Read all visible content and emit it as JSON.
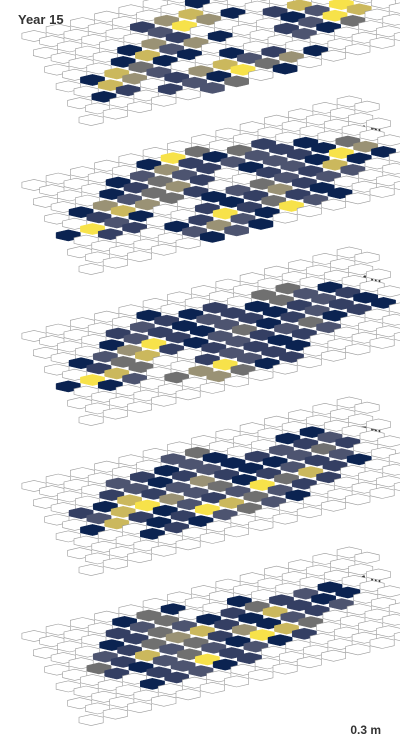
{
  "chart_data": {
    "type": "heatmap",
    "title": "Year 15",
    "depth_unit": "m",
    "colorscale": [
      "#ffffff",
      "#0b2351",
      "#343f63",
      "#4d5470",
      "#707070",
      "#9a9275",
      "#cbb85d",
      "#f7e24a"
    ],
    "layers": [
      {
        "label": "3.1 m",
        "rows": [
          [
            0,
            0,
            0,
            0,
            0,
            0,
            0,
            0,
            0,
            0,
            0,
            0,
            0,
            0
          ],
          [
            0,
            0,
            0,
            0,
            0,
            0,
            1,
            0,
            0,
            0,
            0,
            0,
            0,
            0
          ],
          [
            0,
            0,
            0,
            0,
            2,
            5,
            6,
            0,
            0,
            0,
            0,
            0,
            0,
            0
          ],
          [
            0,
            0,
            0,
            0,
            3,
            7,
            5,
            1,
            0,
            0,
            0,
            0,
            0,
            0
          ],
          [
            0,
            0,
            0,
            1,
            5,
            2,
            0,
            0,
            0,
            2,
            6,
            0,
            0,
            0
          ],
          [
            0,
            0,
            1,
            6,
            3,
            5,
            1,
            0,
            0,
            1,
            3,
            7,
            0,
            0
          ],
          [
            0,
            1,
            6,
            4,
            1,
            1,
            0,
            0,
            0,
            2,
            3,
            7,
            6,
            0
          ],
          [
            0,
            6,
            5,
            3,
            0,
            0,
            1,
            0,
            0,
            3,
            1,
            4,
            0,
            0
          ],
          [
            0,
            1,
            2,
            0,
            2,
            5,
            6,
            3,
            2,
            0,
            0,
            0,
            0,
            0
          ],
          [
            0,
            0,
            0,
            2,
            3,
            1,
            7,
            4,
            5,
            1,
            0,
            0,
            0,
            0
          ],
          [
            0,
            0,
            0,
            0,
            0,
            3,
            4,
            0,
            1,
            0,
            0,
            0,
            0,
            0
          ]
        ]
      },
      {
        "label": "2.4 m",
        "rows": [
          [
            0,
            0,
            0,
            0,
            0,
            0,
            0,
            0,
            0,
            0,
            0,
            0,
            0,
            0
          ],
          [
            0,
            0,
            0,
            0,
            1,
            7,
            4,
            0,
            0,
            0,
            0,
            0,
            0,
            0
          ],
          [
            0,
            0,
            0,
            1,
            3,
            5,
            2,
            1,
            4,
            2,
            0,
            0,
            0,
            0
          ],
          [
            0,
            0,
            1,
            2,
            4,
            3,
            2,
            3,
            3,
            2,
            1,
            0,
            0,
            0
          ],
          [
            0,
            1,
            5,
            3,
            4,
            5,
            2,
            0,
            1,
            3,
            2,
            1,
            4,
            0
          ],
          [
            0,
            2,
            6,
            5,
            4,
            2,
            0,
            0,
            2,
            3,
            1,
            7,
            5,
            0
          ],
          [
            1,
            7,
            3,
            1,
            0,
            0,
            1,
            3,
            4,
            3,
            2,
            6,
            1,
            1
          ],
          [
            0,
            2,
            2,
            0,
            0,
            2,
            1,
            2,
            5,
            2,
            3,
            3,
            0,
            0
          ],
          [
            0,
            0,
            0,
            0,
            1,
            2,
            7,
            2,
            4,
            2,
            1,
            0,
            0,
            0
          ],
          [
            0,
            0,
            0,
            0,
            3,
            5,
            3,
            1,
            7,
            3,
            1,
            0,
            0,
            0
          ],
          [
            0,
            0,
            0,
            0,
            0,
            1,
            3,
            1,
            0,
            0,
            0,
            0,
            0,
            0
          ]
        ]
      },
      {
        "label": "1.7 m",
        "rows": [
          [
            0,
            0,
            0,
            0,
            0,
            0,
            0,
            0,
            0,
            0,
            0,
            0,
            0,
            0
          ],
          [
            0,
            0,
            0,
            0,
            1,
            0,
            0,
            0,
            0,
            0,
            0,
            0,
            0,
            0
          ],
          [
            0,
            0,
            0,
            2,
            3,
            2,
            1,
            2,
            0,
            4,
            4,
            0,
            0,
            0
          ],
          [
            0,
            0,
            1,
            3,
            2,
            1,
            3,
            2,
            1,
            4,
            3,
            1,
            0,
            0
          ],
          [
            0,
            1,
            3,
            5,
            7,
            2,
            1,
            3,
            2,
            1,
            2,
            3,
            2,
            0
          ],
          [
            0,
            2,
            4,
            6,
            2,
            1,
            3,
            4,
            1,
            2,
            3,
            2,
            1,
            0
          ],
          [
            1,
            7,
            6,
            4,
            0,
            0,
            2,
            3,
            2,
            3,
            4,
            1,
            2,
            1
          ],
          [
            0,
            1,
            3,
            0,
            0,
            2,
            3,
            2,
            1,
            2,
            3,
            0,
            0,
            0
          ],
          [
            0,
            0,
            0,
            0,
            4,
            5,
            7,
            3,
            2,
            1,
            0,
            0,
            0,
            0
          ],
          [
            0,
            0,
            0,
            0,
            0,
            5,
            4,
            1,
            2,
            0,
            0,
            0,
            0,
            0
          ],
          [
            0,
            0,
            0,
            0,
            0,
            0,
            0,
            0,
            0,
            0,
            0,
            0,
            0,
            0
          ]
        ]
      },
      {
        "label": "1 m",
        "rows": [
          [
            0,
            0,
            0,
            0,
            0,
            0,
            0,
            0,
            0,
            0,
            0,
            0,
            0,
            0
          ],
          [
            0,
            0,
            0,
            0,
            0,
            3,
            4,
            0,
            0,
            0,
            0,
            0,
            0,
            0
          ],
          [
            0,
            0,
            0,
            3,
            2,
            1,
            3,
            1,
            0,
            0,
            1,
            1,
            0,
            0
          ],
          [
            0,
            0,
            2,
            3,
            1,
            2,
            3,
            1,
            2,
            3,
            2,
            3,
            0,
            0
          ],
          [
            0,
            2,
            1,
            6,
            2,
            3,
            5,
            2,
            1,
            1,
            3,
            4,
            2,
            0
          ],
          [
            0,
            3,
            6,
            7,
            5,
            3,
            4,
            1,
            2,
            3,
            2,
            3,
            0,
            0
          ],
          [
            0,
            1,
            6,
            2,
            1,
            3,
            2,
            3,
            7,
            4,
            6,
            2,
            1,
            0
          ],
          [
            0,
            0,
            0,
            1,
            2,
            7,
            6,
            4,
            3,
            2,
            2,
            0,
            0,
            0
          ],
          [
            0,
            0,
            0,
            1,
            2,
            1,
            3,
            4,
            3,
            1,
            0,
            0,
            0,
            0
          ],
          [
            0,
            0,
            0,
            0,
            0,
            0,
            0,
            0,
            0,
            0,
            0,
            0,
            0,
            0
          ],
          [
            0,
            0,
            0,
            0,
            0,
            0,
            0,
            0,
            0,
            0,
            0,
            0,
            0,
            0
          ]
        ]
      },
      {
        "label": "0.3 m",
        "rows": [
          [
            0,
            0,
            0,
            0,
            0,
            0,
            0,
            0,
            0,
            0,
            0,
            0,
            0,
            0
          ],
          [
            0,
            0,
            0,
            1,
            4,
            1,
            0,
            0,
            0,
            0,
            0,
            0,
            0,
            0
          ],
          [
            0,
            0,
            0,
            2,
            3,
            4,
            0,
            0,
            1,
            0,
            0,
            0,
            0,
            0
          ],
          [
            0,
            0,
            1,
            2,
            4,
            3,
            1,
            2,
            4,
            2,
            3,
            1,
            0,
            0
          ],
          [
            0,
            0,
            3,
            2,
            4,
            5,
            6,
            2,
            1,
            6,
            2,
            1,
            1,
            0
          ],
          [
            0,
            4,
            2,
            6,
            3,
            4,
            2,
            5,
            1,
            3,
            2,
            3,
            0,
            0
          ],
          [
            0,
            0,
            2,
            1,
            3,
            4,
            3,
            1,
            7,
            6,
            4,
            0,
            0,
            0
          ],
          [
            0,
            0,
            0,
            2,
            3,
            7,
            2,
            3,
            1,
            2,
            0,
            0,
            0,
            0
          ],
          [
            0,
            0,
            0,
            1,
            2,
            3,
            1,
            2,
            0,
            0,
            0,
            0,
            0,
            0
          ],
          [
            0,
            0,
            0,
            0,
            0,
            0,
            0,
            0,
            0,
            0,
            0,
            0,
            0,
            0
          ],
          [
            0,
            0,
            0,
            0,
            0,
            0,
            0,
            0,
            0,
            0,
            0,
            0,
            0,
            0
          ]
        ]
      }
    ]
  }
}
